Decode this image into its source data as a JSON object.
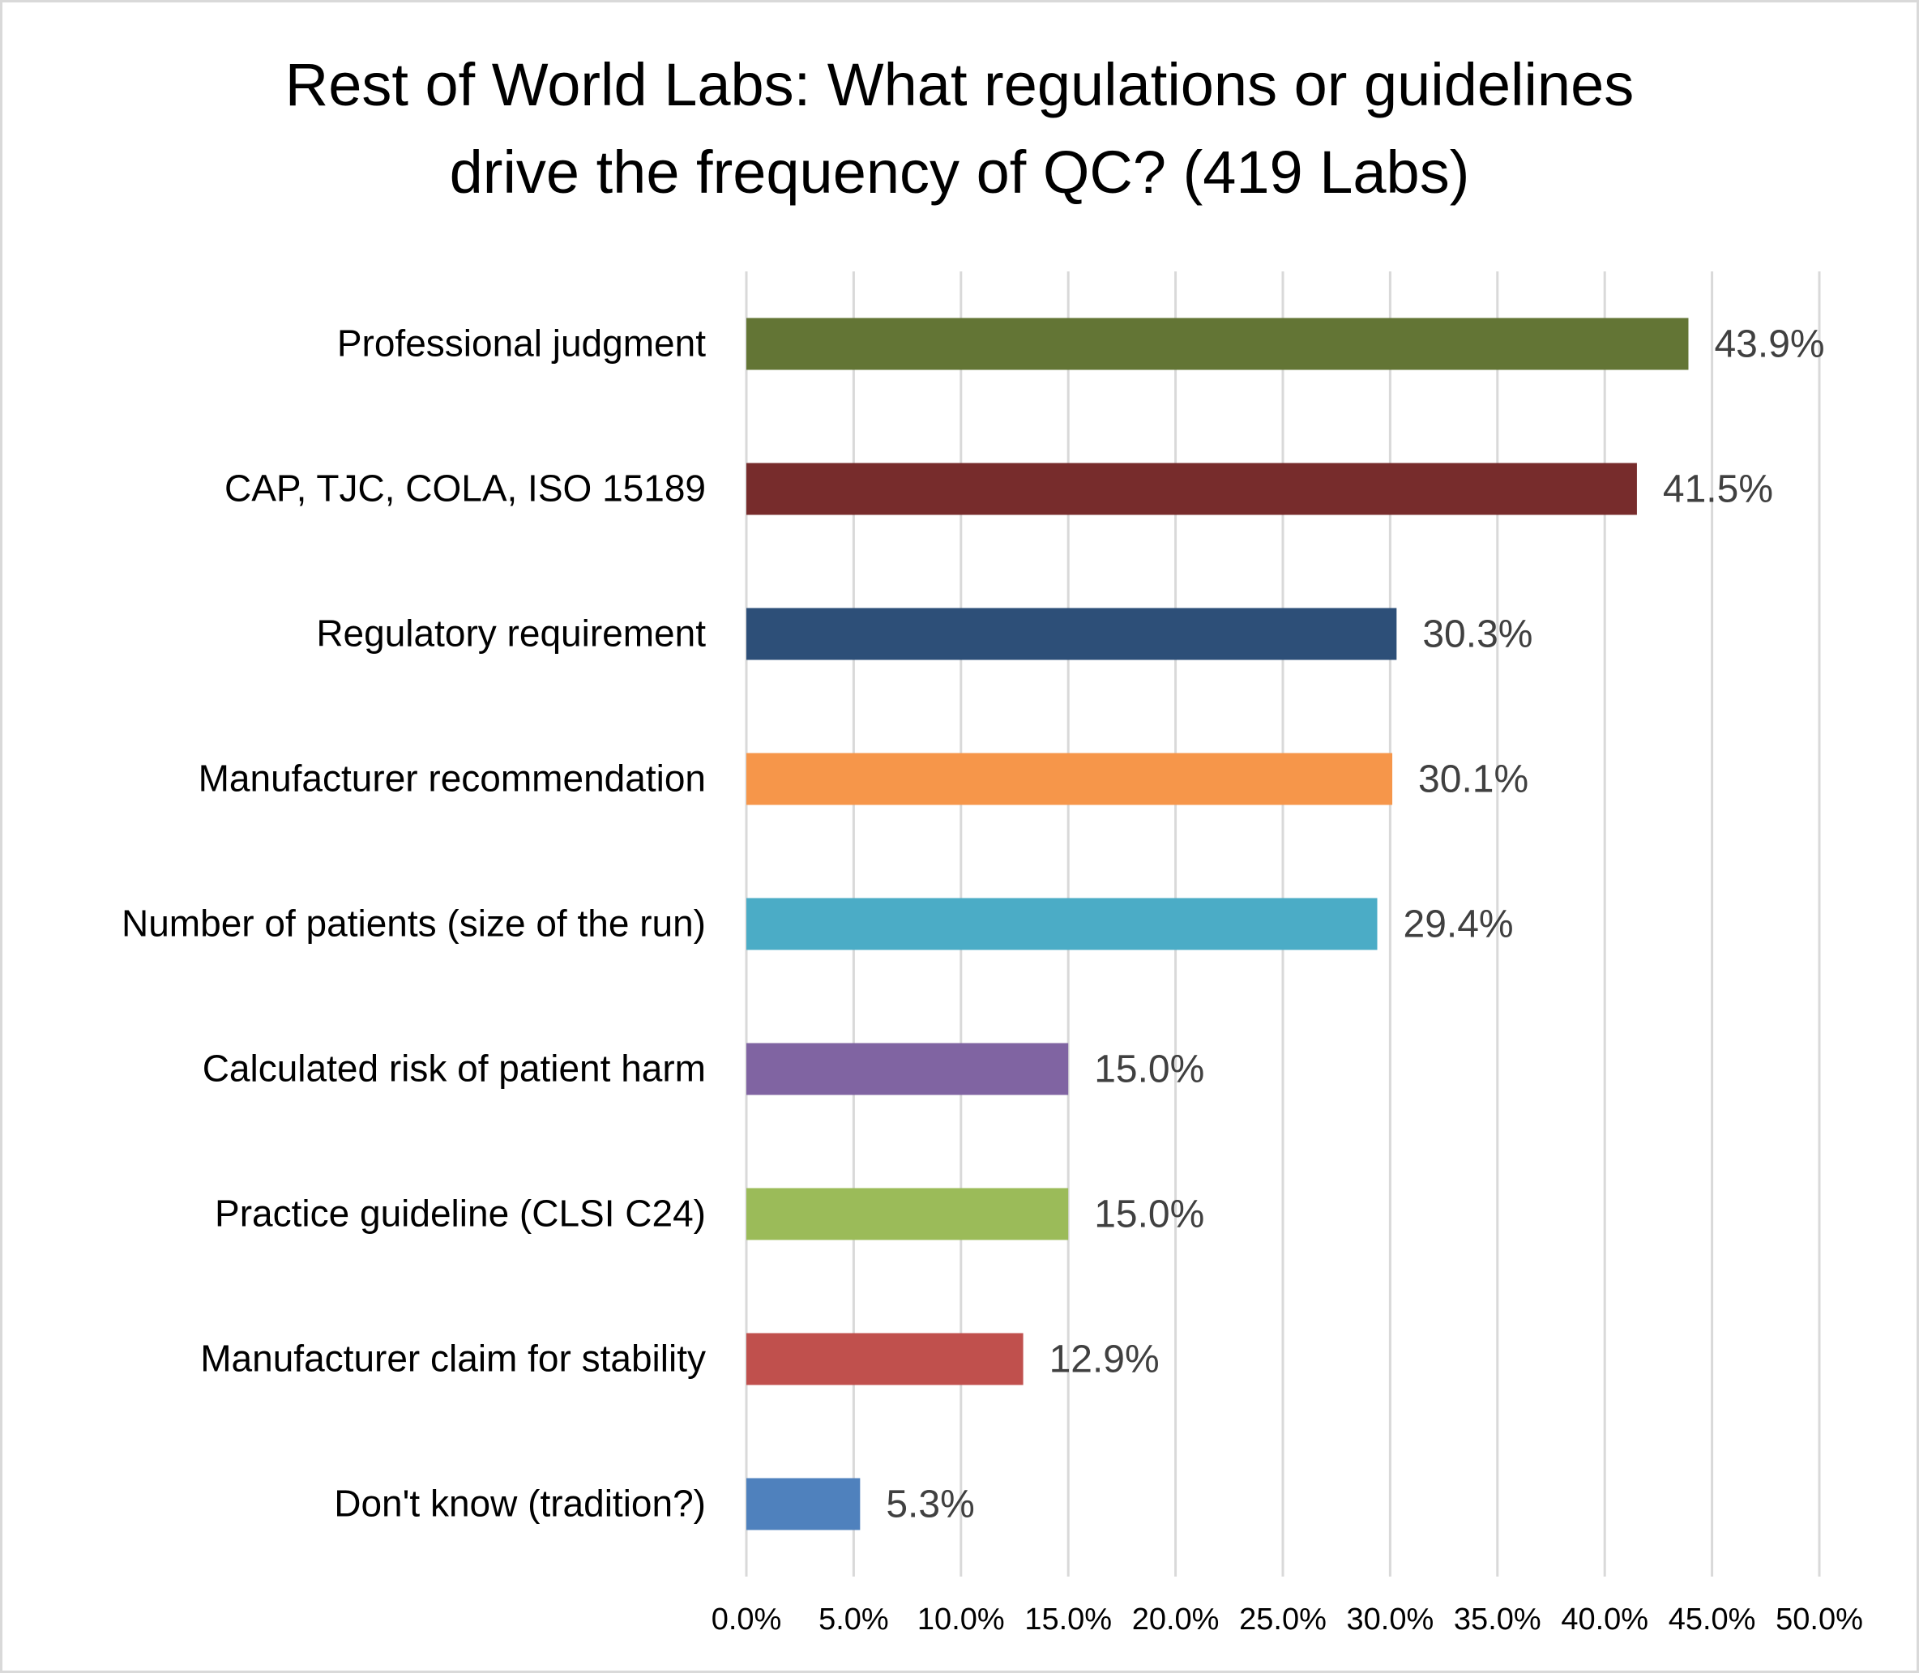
{
  "chart_data": {
    "type": "bar",
    "orientation": "horizontal",
    "title": "Rest of World Labs: What regulations or guidelines drive the frequency of QC? (419 Labs)",
    "title_lines": [
      "Rest of World Labs: What regulations or guidelines",
      "drive the frequency of QC? (419 Labs)"
    ],
    "categories": [
      "Professional judgment",
      "CAP, TJC, COLA, ISO 15189",
      "Regulatory requirement",
      "Manufacturer recommendation",
      "Number of patients (size of the run)",
      "Calculated risk of patient harm",
      "Practice guideline (CLSI C24)",
      "Manufacturer claim for stability",
      "Don't know (tradition?)"
    ],
    "values": [
      43.9,
      41.5,
      30.3,
      30.1,
      29.4,
      15.0,
      15.0,
      12.9,
      5.3
    ],
    "data_labels": [
      "43.9%",
      "41.5%",
      "30.3%",
      "30.1%",
      "29.4%",
      "15.0%",
      "15.0%",
      "12.9%",
      "5.3%"
    ],
    "colors": [
      "#637535",
      "#772c2c",
      "#2d4f78",
      "#f6964a",
      "#4bacc6",
      "#8064a2",
      "#9bbb59",
      "#c0504d",
      "#4f81bd"
    ],
    "xlim": [
      0,
      50
    ],
    "x_ticks": [
      "0.0%",
      "5.0%",
      "10.0%",
      "15.0%",
      "20.0%",
      "25.0%",
      "30.0%",
      "35.0%",
      "40.0%",
      "45.0%",
      "50.0%"
    ],
    "xlabel": "",
    "ylabel": "",
    "grid": "vertical",
    "legend": "none"
  }
}
